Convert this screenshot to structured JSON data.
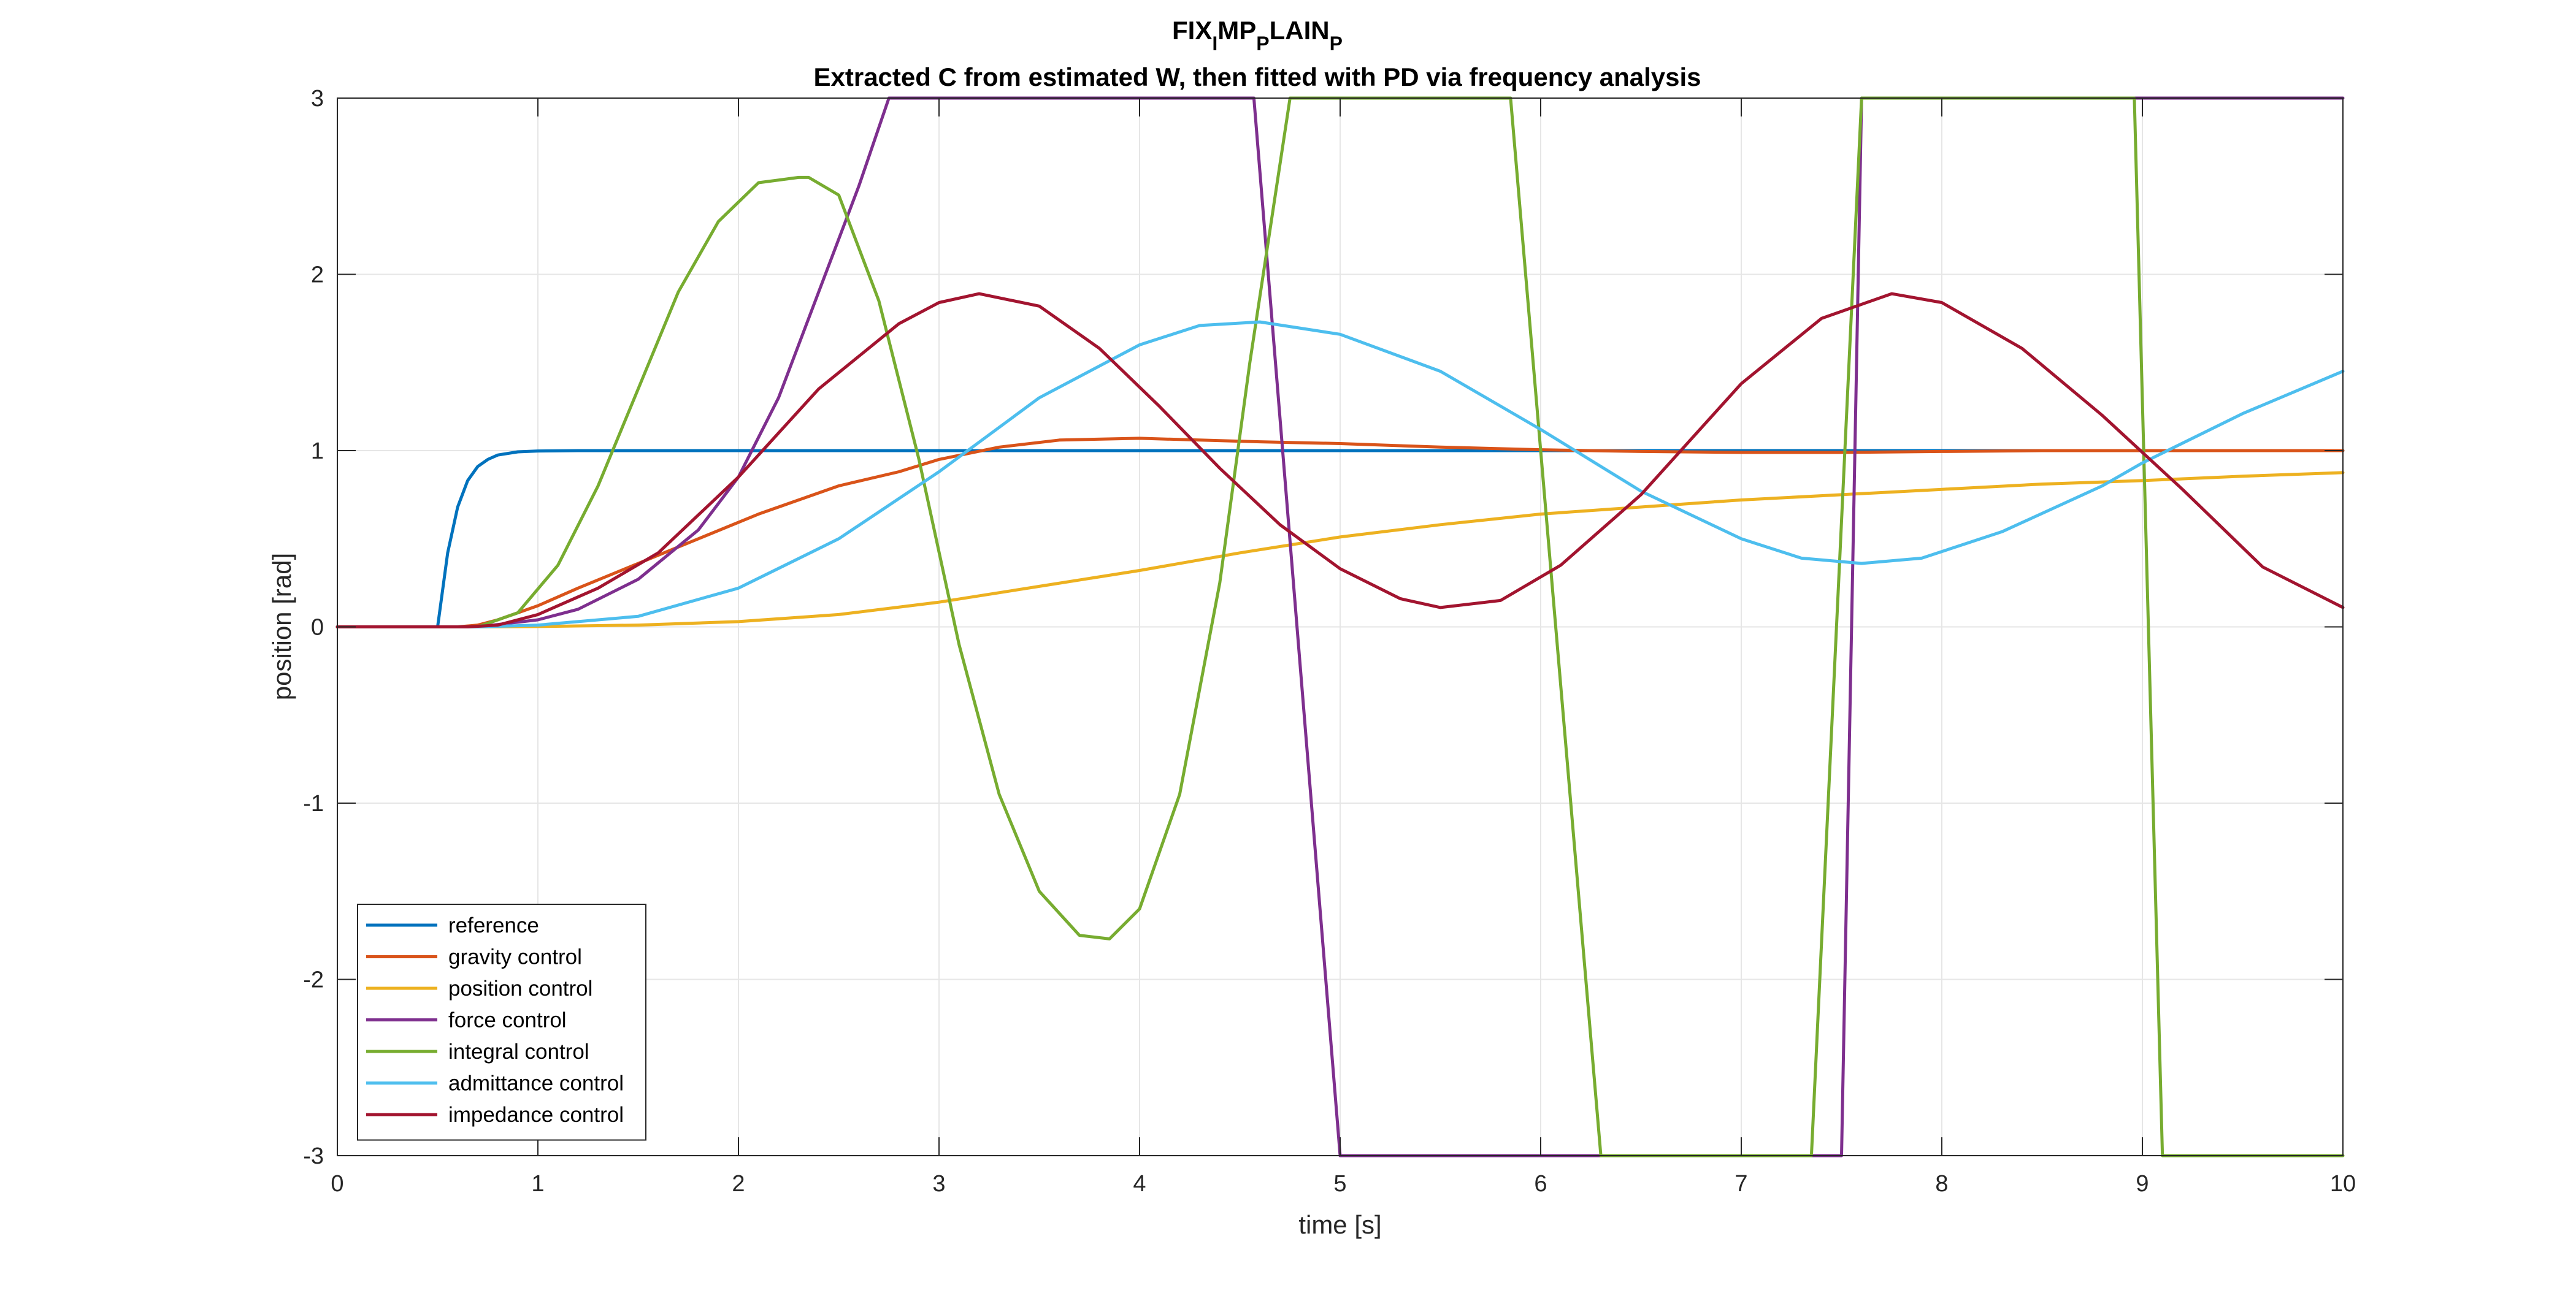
{
  "chart_data": {
    "type": "line",
    "title_main": "FIX",
    "title_parts": [
      {
        "text": "FIX",
        "sub": false
      },
      {
        "text": "I",
        "sub": true
      },
      {
        "text": "MP",
        "sub": false
      },
      {
        "text": "P",
        "sub": true
      },
      {
        "text": "LAIN",
        "sub": false
      },
      {
        "text": "P",
        "sub": true
      }
    ],
    "subtitle": "Extracted C from estimated W, then fitted with PD via frequency analysis",
    "xlabel": "time [s]",
    "ylabel": "position [rad]",
    "xlim": [
      0,
      10
    ],
    "ylim": [
      -3,
      3
    ],
    "xticks": [
      0,
      1,
      2,
      3,
      4,
      5,
      6,
      7,
      8,
      9,
      10
    ],
    "yticks": [
      -3,
      -2,
      -1,
      0,
      1,
      2,
      3
    ],
    "grid": true,
    "legend_position": "bottom-left",
    "series": [
      {
        "name": "reference",
        "color": "#0072BD",
        "x": [
          0,
          0.5,
          0.55,
          0.6,
          0.65,
          0.7,
          0.75,
          0.8,
          0.9,
          1.0,
          1.2,
          1.5,
          2,
          3,
          4,
          5,
          6,
          7,
          8,
          9,
          10
        ],
        "y": [
          0,
          0,
          0.42,
          0.68,
          0.83,
          0.91,
          0.95,
          0.975,
          0.993,
          0.998,
          1.0,
          1.0,
          1.0,
          1.0,
          1.0,
          1.0,
          1.0,
          1.0,
          1.0,
          1.0,
          1.0
        ]
      },
      {
        "name": "gravity control",
        "color": "#D95319",
        "x": [
          0,
          0.6,
          0.7,
          0.8,
          1.0,
          1.2,
          1.5,
          1.8,
          2.1,
          2.3,
          2.5,
          2.8,
          3.0,
          3.3,
          3.6,
          4.0,
          4.3,
          4.6,
          5.0,
          5.5,
          6.0,
          6.5,
          7.0,
          7.5,
          8.0,
          8.5,
          9.0,
          9.5,
          10.0
        ],
        "y": [
          0,
          0,
          0.01,
          0.04,
          0.12,
          0.22,
          0.36,
          0.5,
          0.64,
          0.72,
          0.8,
          0.88,
          0.95,
          1.02,
          1.06,
          1.07,
          1.06,
          1.05,
          1.04,
          1.02,
          1.005,
          0.995,
          0.99,
          0.99,
          0.995,
          1.0,
          1.0,
          1.0,
          1.0
        ]
      },
      {
        "name": "position control",
        "color": "#EDB120",
        "x": [
          0,
          0.7,
          1.0,
          1.5,
          2.0,
          2.5,
          3.0,
          3.5,
          4.0,
          4.5,
          5.0,
          5.5,
          6.0,
          6.5,
          7.0,
          7.5,
          8.0,
          8.5,
          9.0,
          9.5,
          10.0
        ],
        "y": [
          0,
          0,
          0.002,
          0.01,
          0.03,
          0.07,
          0.14,
          0.23,
          0.32,
          0.42,
          0.51,
          0.58,
          0.64,
          0.68,
          0.72,
          0.75,
          0.78,
          0.81,
          0.83,
          0.855,
          0.875
        ]
      },
      {
        "name": "force control",
        "color": "#7E2F8E",
        "x": [
          0,
          0.7,
          1.0,
          1.2,
          1.5,
          1.8,
          2.0,
          2.2,
          2.4,
          2.6,
          2.75,
          3.0,
          4.0,
          4.57,
          5.0,
          5.2,
          6.0,
          7.0,
          7.5,
          7.6,
          8.0,
          9.0,
          10.0
        ],
        "y": [
          0,
          0,
          0.04,
          0.1,
          0.27,
          0.55,
          0.85,
          1.3,
          1.9,
          2.5,
          3,
          3,
          3,
          3,
          -3,
          -3,
          -3,
          -3,
          -3,
          3,
          3,
          3,
          3
        ]
      },
      {
        "name": "integral control",
        "color": "#77AC30",
        "x": [
          0,
          0.7,
          0.9,
          1.1,
          1.3,
          1.5,
          1.7,
          1.9,
          2.1,
          2.3,
          2.35,
          2.5,
          2.7,
          2.9,
          3.1,
          3.3,
          3.5,
          3.7,
          3.85,
          4.0,
          4.2,
          4.4,
          4.55,
          4.75,
          4.85,
          5.85,
          6.3,
          6.5,
          7.0,
          7.35,
          7.6,
          7.8,
          8.96,
          9.1,
          9.5,
          10.0
        ],
        "y": [
          0,
          0,
          0.08,
          0.35,
          0.8,
          1.35,
          1.9,
          2.3,
          2.52,
          2.55,
          2.55,
          2.45,
          1.85,
          0.95,
          -0.1,
          -0.95,
          -1.5,
          -1.75,
          -1.77,
          -1.6,
          -0.95,
          0.25,
          1.5,
          3,
          3,
          3,
          -3,
          -3,
          -3,
          -3,
          3,
          3,
          3,
          -3,
          -3,
          -3
        ]
      },
      {
        "name": "admittance control",
        "color": "#4DBEEE",
        "x": [
          0,
          0.7,
          1.0,
          1.5,
          2.0,
          2.5,
          3.0,
          3.5,
          4.0,
          4.3,
          4.6,
          5.0,
          5.5,
          6.0,
          6.5,
          7.0,
          7.3,
          7.6,
          7.9,
          8.3,
          8.8,
          9.0,
          9.5,
          10.0
        ],
        "y": [
          0,
          0,
          0.01,
          0.06,
          0.22,
          0.5,
          0.88,
          1.3,
          1.6,
          1.71,
          1.73,
          1.66,
          1.45,
          1.12,
          0.77,
          0.5,
          0.39,
          0.36,
          0.39,
          0.54,
          0.8,
          0.93,
          1.21,
          1.45
        ]
      },
      {
        "name": "impedance control",
        "color": "#A2142F",
        "x": [
          0,
          0.65,
          0.8,
          1.0,
          1.3,
          1.6,
          2.0,
          2.4,
          2.8,
          3.0,
          3.2,
          3.5,
          3.8,
          4.1,
          4.4,
          4.7,
          5.0,
          5.3,
          5.5,
          5.8,
          6.1,
          6.5,
          7.0,
          7.4,
          7.75,
          8.0,
          8.4,
          8.8,
          9.2,
          9.6,
          10.0
        ],
        "y": [
          0,
          0,
          0.01,
          0.07,
          0.22,
          0.42,
          0.85,
          1.35,
          1.72,
          1.84,
          1.89,
          1.82,
          1.58,
          1.25,
          0.9,
          0.58,
          0.33,
          0.16,
          0.11,
          0.15,
          0.35,
          0.75,
          1.38,
          1.75,
          1.89,
          1.84,
          1.58,
          1.2,
          0.78,
          0.34,
          0.11
        ]
      }
    ]
  }
}
